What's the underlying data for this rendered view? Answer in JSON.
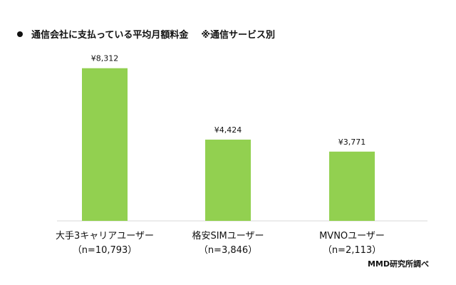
{
  "header": {
    "title": "通信会社に支払っている平均月額料金",
    "subtitle": "※通信サービス別"
  },
  "chart_data": {
    "type": "bar",
    "categories": [
      "大手3キャリアユーザー",
      "格安SIMユーザー",
      "MVNOユーザー"
    ],
    "sample_sizes": [
      "（n=10,793）",
      "（n=3,846）",
      "（n=2,113）"
    ],
    "values": [
      8312,
      4424,
      3771
    ],
    "value_labels": [
      "¥8,312",
      "¥4,424",
      "¥3,771"
    ],
    "title": "通信会社に支払っている平均月額料金",
    "xlabel": "",
    "ylabel": "",
    "ylim": [
      0,
      9000
    ],
    "grid": false,
    "legend": "none",
    "bar_color": "#92D050",
    "axis_color": "#d9d9d9"
  },
  "footer": {
    "source": "MMD研究所調べ"
  }
}
